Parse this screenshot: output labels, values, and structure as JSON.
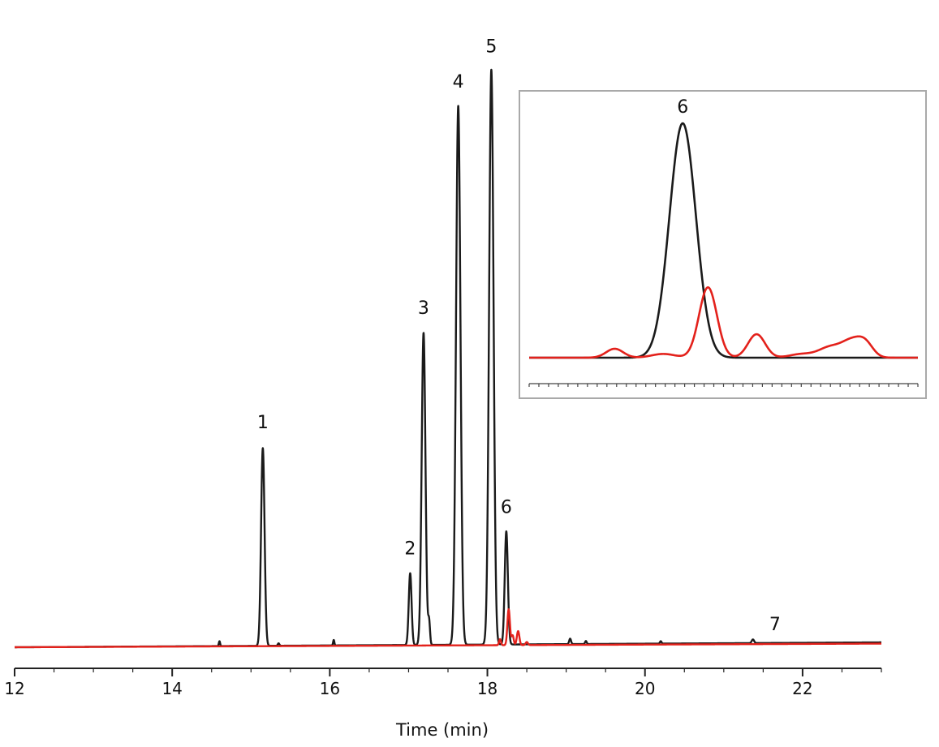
{
  "chart_data": [
    {
      "type": "line",
      "title": "",
      "xlabel": "Time (min)",
      "ylabel": "",
      "xlim": [
        12,
        23
      ],
      "ylim": [
        0,
        100
      ],
      "xticks": [
        12,
        14,
        16,
        18,
        20,
        22
      ],
      "xtick_labels": [
        "12",
        "14",
        "16",
        "18",
        "20",
        "22"
      ],
      "minor_tick_step": 0.5,
      "grid": false,
      "colors": {
        "black": "#1a1a1a",
        "red": "#e3211b"
      },
      "series": [
        {
          "color": "#1a1a1a",
          "baseline": [
            [
              12.0,
              0.0
            ],
            [
              23.0,
              0.8
            ]
          ],
          "peaks": [
            {
              "x": 14.6,
              "height": 0.8,
              "width": 0.008
            },
            {
              "x": 15.15,
              "height": 32.5,
              "width": 0.022
            },
            {
              "x": 15.35,
              "height": 0.4,
              "width": 0.01
            },
            {
              "x": 16.05,
              "height": 0.9,
              "width": 0.008
            },
            {
              "x": 17.02,
              "height": 11.8,
              "width": 0.018
            },
            {
              "x": 17.19,
              "height": 51.3,
              "width": 0.024
            },
            {
              "x": 17.26,
              "height": 3.8,
              "width": 0.012
            },
            {
              "x": 17.63,
              "height": 88.6,
              "width": 0.028
            },
            {
              "x": 18.05,
              "height": 94.5,
              "width": 0.028
            },
            {
              "x": 18.24,
              "height": 18.6,
              "width": 0.02
            },
            {
              "x": 19.05,
              "height": 0.9,
              "width": 0.012
            },
            {
              "x": 19.25,
              "height": 0.5,
              "width": 0.01
            },
            {
              "x": 20.2,
              "height": 0.4,
              "width": 0.01
            },
            {
              "x": 21.37,
              "height": 0.6,
              "width": 0.015
            }
          ]
        },
        {
          "color": "#e3211b",
          "baseline": [
            [
              12.0,
              0.0
            ],
            [
              23.0,
              0.6
            ]
          ],
          "peaks": [
            {
              "x": 18.16,
              "height": 1.0,
              "width": 0.012
            },
            {
              "x": 18.27,
              "height": 5.9,
              "width": 0.016
            },
            {
              "x": 18.32,
              "height": 1.6,
              "width": 0.014
            },
            {
              "x": 18.39,
              "height": 2.3,
              "width": 0.016
            },
            {
              "x": 18.5,
              "height": 0.5,
              "width": 0.015
            }
          ]
        }
      ],
      "annotations": [
        {
          "text": "1",
          "x": 15.15,
          "y": 36.0
        },
        {
          "text": "2",
          "x": 17.02,
          "y": 15.3
        },
        {
          "text": "3",
          "x": 17.19,
          "y": 54.8
        },
        {
          "text": "4",
          "x": 17.63,
          "y": 92.0
        },
        {
          "text": "5",
          "x": 18.05,
          "y": 97.8
        },
        {
          "text": "6",
          "x": 18.24,
          "y": 22.1
        },
        {
          "text": "7",
          "x": 21.65,
          "y": 2.8
        }
      ]
    },
    {
      "type": "line",
      "title": "",
      "xlabel": "",
      "ylabel": "",
      "xlim": [
        0,
        100
      ],
      "ylim": [
        0,
        100
      ],
      "minor_tick_step": 2.5,
      "grid": false,
      "series": [
        {
          "color": "#1a1a1a",
          "baseline": [
            [
              0,
              0
            ],
            [
              100,
              0
            ]
          ],
          "peaks": [
            {
              "x": 39.5,
              "height": 100.0,
              "width": 3.4
            }
          ]
        },
        {
          "color": "#e3211b",
          "baseline": [
            [
              0,
              0
            ],
            [
              100,
              0
            ]
          ],
          "peaks": [
            {
              "x": 22.0,
              "height": 3.8,
              "width": 2.2
            },
            {
              "x": 34.5,
              "height": 1.6,
              "width": 3.0
            },
            {
              "x": 46.0,
              "height": 30.0,
              "width": 2.3
            },
            {
              "x": 58.5,
              "height": 10.0,
              "width": 2.2
            },
            {
              "x": 70.0,
              "height": 1.5,
              "width": 3.0
            },
            {
              "x": 77.5,
              "height": 4.5,
              "width": 3.0
            },
            {
              "x": 83.0,
              "height": 6.5,
              "width": 2.5
            },
            {
              "x": 86.5,
              "height": 5.5,
              "width": 2.0
            }
          ]
        }
      ],
      "annotations": [
        {
          "text": "6",
          "x": 39.5,
          "y": 104.5
        }
      ]
    }
  ]
}
